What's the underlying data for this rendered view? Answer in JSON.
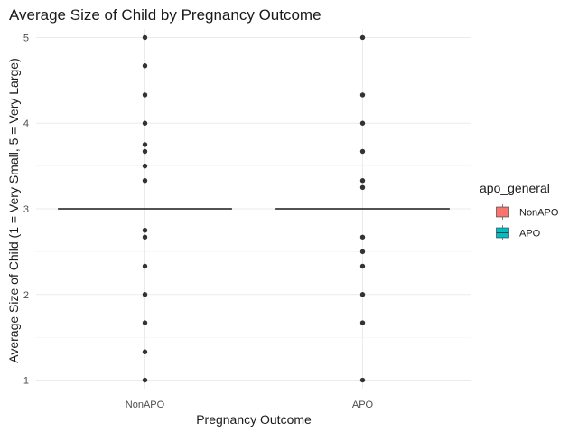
{
  "chart_data": {
    "type": "boxplot",
    "title": "Average Size of Child by Pregnancy Outcome",
    "xlabel": "Pregnancy Outcome",
    "ylabel": "Average Size of Child (1 = Very Small, 5 = Very Large)",
    "categories": [
      "NonAPO",
      "APO"
    ],
    "ylim": [
      0.9,
      5.1
    ],
    "y_ticks": [
      1,
      2,
      3,
      4,
      5
    ],
    "grid": true,
    "legend": {
      "title": "apo_general",
      "placement": "right",
      "entries": [
        {
          "label": "NonAPO",
          "color": "#F8766D"
        },
        {
          "label": "APO",
          "color": "#00BFC4"
        }
      ]
    },
    "series": [
      {
        "name": "NonAPO",
        "median": 3,
        "points": [
          5,
          4.67,
          4.33,
          4,
          3.75,
          3.67,
          3.5,
          3.33,
          2.75,
          2.67,
          2.33,
          2,
          1.67,
          1.33,
          1
        ]
      },
      {
        "name": "APO",
        "median": 3,
        "points": [
          5,
          4.33,
          4,
          3.67,
          3.33,
          3.25,
          2.67,
          2.5,
          2.33,
          2,
          1.67,
          1
        ]
      }
    ]
  }
}
